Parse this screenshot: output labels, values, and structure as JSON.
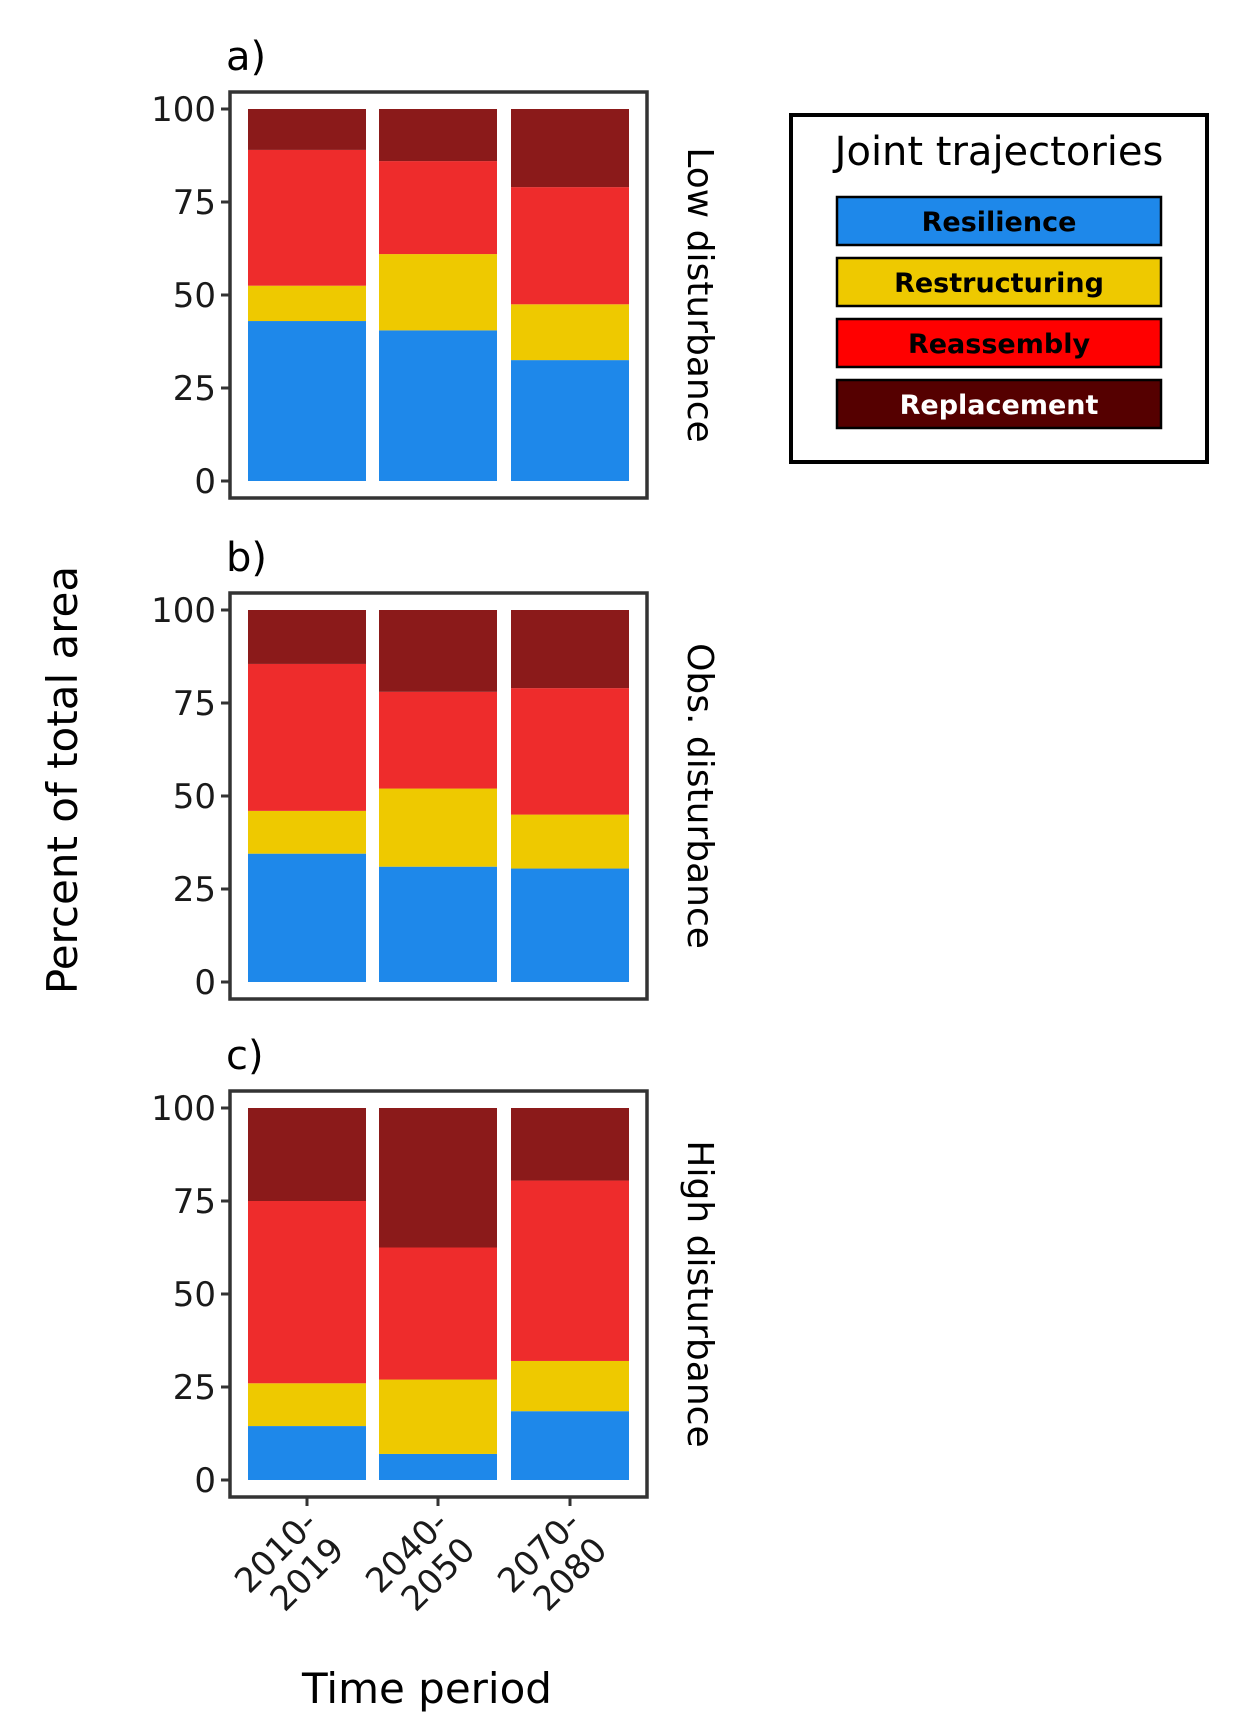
{
  "figure": {
    "ylabel": "Percent of total area",
    "xlabel": "Time period"
  },
  "legend": {
    "title": "Joint trajectories",
    "items": [
      {
        "label": "Resilience",
        "color": "#1e88ea",
        "text_color": "#000000",
        "legend_fill": "#1e88ea"
      },
      {
        "label": "Restructuring",
        "color": "#eec900",
        "text_color": "#000000",
        "legend_fill": "#eec900"
      },
      {
        "label": "Reassembly",
        "color": "#ee2c2c",
        "text_color": "#000000",
        "legend_fill": "#ff0000"
      },
      {
        "label": "Replacement",
        "color": "#8b1a1a",
        "text_color": "#ffffff",
        "legend_fill": "#550000"
      }
    ]
  },
  "chart_data": [
    {
      "type": "bar",
      "stacked": true,
      "panel_label": "a)",
      "strip_label": "Low disturbance",
      "categories": [
        "2010-\n2019",
        "2040-\n2050",
        "2070-\n2080"
      ],
      "ylim": [
        0,
        100
      ],
      "yticks": [
        0,
        25,
        50,
        75,
        100
      ],
      "series": [
        {
          "name": "Resilience",
          "values": [
            43,
            40.5,
            32.5
          ]
        },
        {
          "name": "Restructuring",
          "values": [
            9.5,
            20.5,
            15
          ]
        },
        {
          "name": "Reassembly",
          "values": [
            36.5,
            25,
            31.5
          ]
        },
        {
          "name": "Replacement",
          "values": [
            11,
            14,
            21
          ]
        }
      ]
    },
    {
      "type": "bar",
      "stacked": true,
      "panel_label": "b)",
      "strip_label": "Obs. disturbance",
      "categories": [
        "2010-\n2019",
        "2040-\n2050",
        "2070-\n2080"
      ],
      "ylim": [
        0,
        100
      ],
      "yticks": [
        0,
        25,
        50,
        75,
        100
      ],
      "series": [
        {
          "name": "Resilience",
          "values": [
            34.5,
            31,
            30.5
          ]
        },
        {
          "name": "Restructuring",
          "values": [
            11.5,
            21,
            14.5
          ]
        },
        {
          "name": "Reassembly",
          "values": [
            39.5,
            26,
            34
          ]
        },
        {
          "name": "Replacement",
          "values": [
            14.5,
            22,
            21
          ]
        }
      ]
    },
    {
      "type": "bar",
      "stacked": true,
      "panel_label": "c)",
      "strip_label": "High disturbance",
      "categories": [
        "2010-\n2019",
        "2040-\n2050",
        "2070-\n2080"
      ],
      "ylim": [
        0,
        100
      ],
      "yticks": [
        0,
        25,
        50,
        75,
        100
      ],
      "series": [
        {
          "name": "Resilience",
          "values": [
            14.5,
            7,
            18.5
          ]
        },
        {
          "name": "Restructuring",
          "values": [
            11.5,
            20,
            13.5
          ]
        },
        {
          "name": "Reassembly",
          "values": [
            49,
            35.5,
            48.5
          ]
        },
        {
          "name": "Replacement",
          "values": [
            25,
            37.5,
            19.5
          ]
        }
      ]
    }
  ]
}
